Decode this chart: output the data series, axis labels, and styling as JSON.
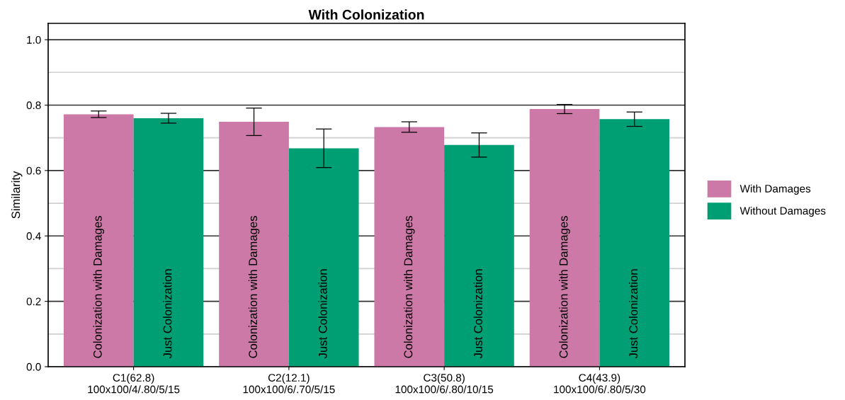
{
  "chart_data": {
    "type": "bar",
    "title": "With Colonization",
    "ylabel": "Similarity",
    "categories": [
      "C1(62.8)\n100x100/4/.80/5/15",
      "C2(12.1)\n100x100/6/.70/5/15",
      "C3(50.8)\n100x100/6/.80/10/15",
      "C4(43.9)\n100x100/6/.80/5/30"
    ],
    "series": [
      {
        "name": "With Damages",
        "color": "#cc79a7",
        "values": [
          0.772,
          0.749,
          0.733,
          0.788
        ],
        "errors": [
          0.01,
          0.042,
          0.016,
          0.014
        ],
        "value_labels": [
          "Colonization with Damages",
          "Colonization with Damages",
          "Colonization with Damages",
          "Colonization with Damages"
        ]
      },
      {
        "name": "Without Damages",
        "color": "#009e73",
        "values": [
          0.76,
          0.668,
          0.678,
          0.757
        ],
        "errors": [
          0.015,
          0.059,
          0.037,
          0.022
        ],
        "value_labels": [
          "Just Colonization",
          "Just Colonization",
          "Just Colonization",
          "Just Colonization"
        ]
      }
    ],
    "ylim": [
      0,
      1.05
    ],
    "yticks": [
      {
        "value": 0,
        "label": "0.0"
      },
      {
        "value": 0.2,
        "label": "0.2"
      },
      {
        "value": 0.4,
        "label": "0.4"
      },
      {
        "value": 0.6,
        "label": "0.6"
      },
      {
        "value": 0.8,
        "label": "0.8"
      },
      {
        "value": 1.0,
        "label": "1.0"
      }
    ],
    "grid": true,
    "legend": "right"
  }
}
